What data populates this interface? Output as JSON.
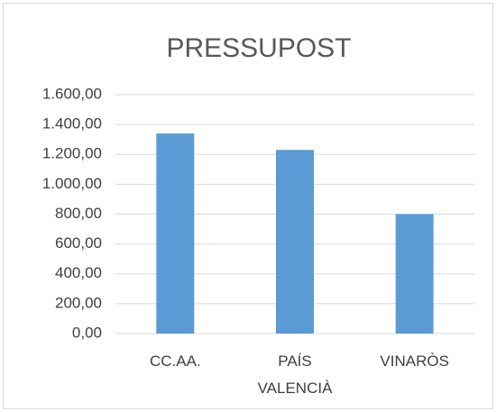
{
  "chart_data": {
    "type": "bar",
    "title": "PRESSUPOST",
    "categories": [
      "CC.AA.",
      "PAÍS VALENCIÀ",
      "VINARÒS"
    ],
    "values": [
      1340,
      1230,
      800
    ],
    "color": "#5b9bd5",
    "ylim": [
      0,
      1600
    ],
    "yticks": [
      {
        "value": 0,
        "label": "0,00"
      },
      {
        "value": 200,
        "label": "200,00"
      },
      {
        "value": 400,
        "label": "400,00"
      },
      {
        "value": 600,
        "label": "600,00"
      },
      {
        "value": 800,
        "label": "800,00"
      },
      {
        "value": 1000,
        "label": "1.000,00"
      },
      {
        "value": 1200,
        "label": "1.200,00"
      },
      {
        "value": 1400,
        "label": "1.400,00"
      },
      {
        "value": 1600,
        "label": "1.600,00"
      }
    ],
    "grid": true
  }
}
